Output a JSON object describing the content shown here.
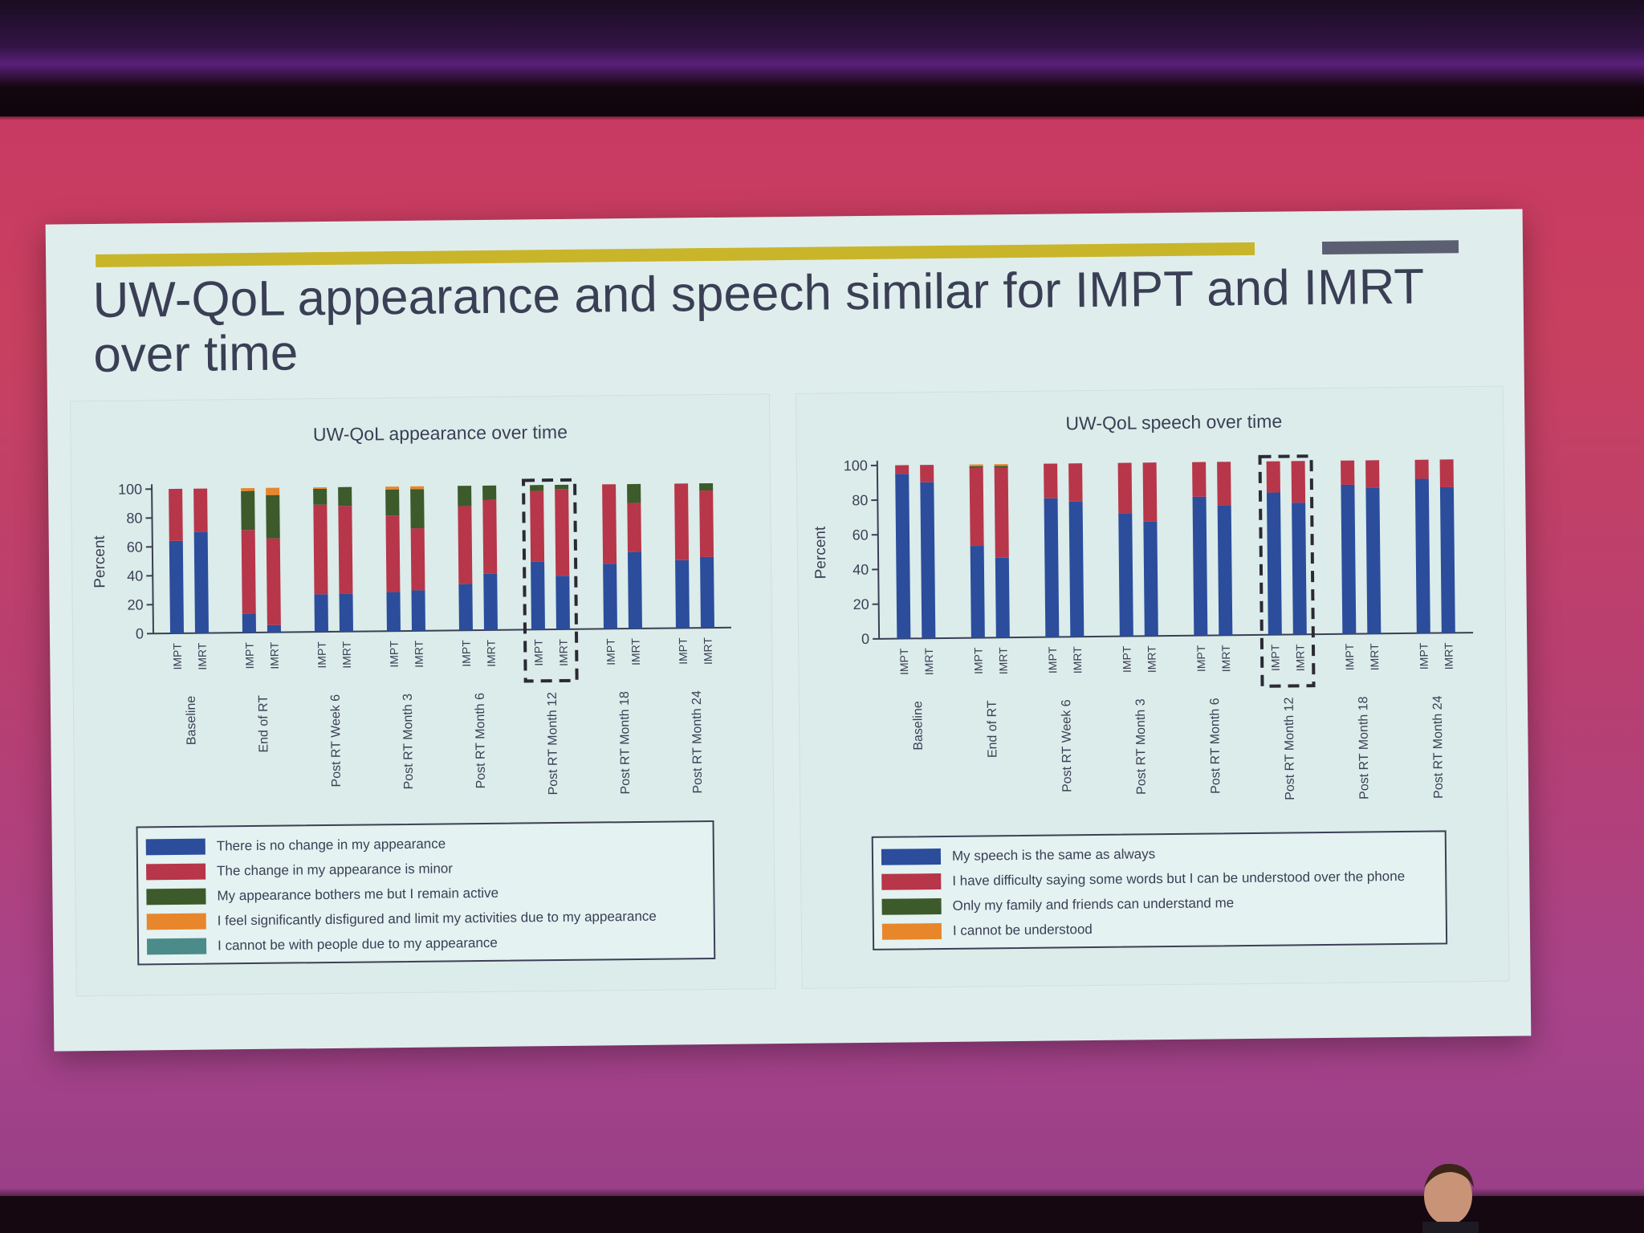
{
  "slide": {
    "title": "UW-QoL appearance and speech similar for IMPT and IMRT over time",
    "colors": {
      "accent_bar": "#c9b52a",
      "accent_bar_secondary": "#5c5f72",
      "title_text": "#3a3f55",
      "slide_bg": "#dfeeed"
    }
  },
  "chart_data": [
    {
      "type": "bar",
      "stacked": true,
      "title": "UW-QoL appearance over time",
      "ylabel": "Percent",
      "ylim": [
        0,
        100
      ],
      "yticks": [
        0,
        20,
        40,
        60,
        80,
        100
      ],
      "groups": [
        "Baseline",
        "End of RT",
        "Post RT Week 6",
        "Post RT Month 3",
        "Post RT Month 6",
        "Post RT Month 12",
        "Post RT Month 18",
        "Post RT Month 24"
      ],
      "bar_labels": [
        "IMPT",
        "IMRT"
      ],
      "highlighted_group": "Post RT Month 12",
      "series": [
        {
          "name": "There is no change in my appearance",
          "color": "#2b4d9c",
          "values": [
            [
              64,
              70
            ],
            [
              13,
              5
            ],
            [
              26,
              26
            ],
            [
              27,
              28
            ],
            [
              32,
              39
            ],
            [
              47,
              37
            ],
            [
              45,
              53
            ],
            [
              47,
              49
            ]
          ]
        },
        {
          "name": "The change in my appearance is minor",
          "color": "#b7364a",
          "values": [
            [
              36,
              30
            ],
            [
              58,
              60
            ],
            [
              62,
              61
            ],
            [
              53,
              43
            ],
            [
              54,
              51
            ],
            [
              49,
              60
            ],
            [
              55,
              34
            ],
            [
              53,
              46
            ]
          ]
        },
        {
          "name": "My appearance bothers me but I remain active",
          "color": "#3c5a2a",
          "values": [
            [
              0,
              0
            ],
            [
              27,
              30
            ],
            [
              11,
              13
            ],
            [
              18,
              27
            ],
            [
              14,
              10
            ],
            [
              4,
              3
            ],
            [
              0,
              13
            ],
            [
              0,
              5
            ]
          ]
        },
        {
          "name": "I feel significantly disfigured and limit my activities due to my appearance",
          "color": "#e8862c",
          "values": [
            [
              0,
              0
            ],
            [
              2,
              5
            ],
            [
              1,
              0
            ],
            [
              2,
              2
            ],
            [
              0,
              0
            ],
            [
              0,
              0
            ],
            [
              0,
              0
            ],
            [
              0,
              0
            ]
          ]
        },
        {
          "name": "I cannot be with people due to my appearance",
          "color": "#4b8c8a",
          "values": [
            [
              0,
              0
            ],
            [
              0,
              0
            ],
            [
              0,
              0
            ],
            [
              0,
              0
            ],
            [
              0,
              0
            ],
            [
              0,
              0
            ],
            [
              0,
              0
            ],
            [
              0,
              0
            ]
          ]
        }
      ]
    },
    {
      "type": "bar",
      "stacked": true,
      "title": "UW-QoL speech over time",
      "ylabel": "Percent",
      "ylim": [
        0,
        100
      ],
      "yticks": [
        0,
        20,
        40,
        60,
        80,
        100
      ],
      "groups": [
        "Baseline",
        "End of RT",
        "Post RT Week 6",
        "Post RT Month 3",
        "Post RT Month 6",
        "Post RT Month 12",
        "Post RT Month 18",
        "Post RT Month 24"
      ],
      "bar_labels": [
        "IMPT",
        "IMRT"
      ],
      "highlighted_group": "Post RT Month 12",
      "series": [
        {
          "name": "My speech is the same as always",
          "color": "#2b4d9c",
          "values": [
            [
              95,
              90
            ],
            [
              53,
              46
            ],
            [
              80,
              78
            ],
            [
              71,
              66
            ],
            [
              80,
              75
            ],
            [
              82,
              76
            ],
            [
              86,
              84
            ],
            [
              89,
              84
            ]
          ]
        },
        {
          "name": "I have difficulty saying some words but I can be understood over the phone",
          "color": "#b7364a",
          "values": [
            [
              5,
              10
            ],
            [
              45,
              52
            ],
            [
              20,
              22
            ],
            [
              29,
              34
            ],
            [
              20,
              25
            ],
            [
              18,
              24
            ],
            [
              14,
              16
            ],
            [
              11,
              16
            ]
          ]
        },
        {
          "name": "Only my family and friends can understand me",
          "color": "#3c5a2a",
          "values": [
            [
              0,
              0
            ],
            [
              1,
              1
            ],
            [
              0,
              0
            ],
            [
              0,
              0
            ],
            [
              0,
              0
            ],
            [
              0,
              0
            ],
            [
              0,
              0
            ],
            [
              0,
              0
            ]
          ]
        },
        {
          "name": "I cannot be understood",
          "color": "#e8862c",
          "values": [
            [
              0,
              0
            ],
            [
              1,
              1
            ],
            [
              0,
              0
            ],
            [
              0,
              0
            ],
            [
              0,
              0
            ],
            [
              0,
              0
            ],
            [
              0,
              0
            ],
            [
              0,
              0
            ]
          ]
        }
      ]
    }
  ]
}
